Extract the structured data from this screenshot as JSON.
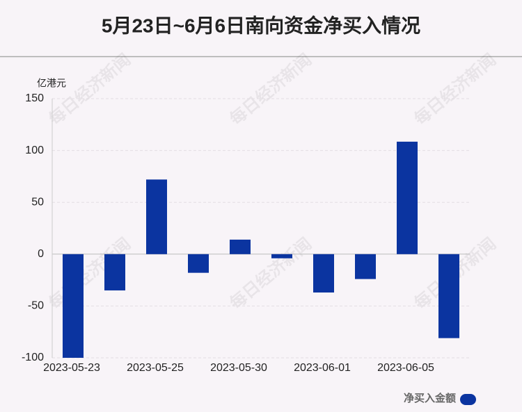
{
  "chart_data": {
    "type": "bar",
    "title": "5月23日~6月6日南向资金净买入情况",
    "y_label": "亿港元",
    "watermark": "每日经济新闻",
    "categories": [
      "2023-05-23",
      null,
      "2023-05-25",
      null,
      "2023-05-30",
      null,
      "2023-06-01",
      null,
      "2023-06-05",
      null
    ],
    "series": [
      {
        "name": "净买入金额",
        "color": "#0b34a0",
        "values": [
          -100,
          -35,
          72,
          -18,
          14,
          -4,
          -37,
          -24,
          108.5,
          -81
        ]
      }
    ],
    "ylim": [
      -100,
      150
    ],
    "yticks": [
      -100,
      -50,
      0,
      50,
      100,
      150
    ],
    "grid": true,
    "legend": "bottom-right"
  }
}
